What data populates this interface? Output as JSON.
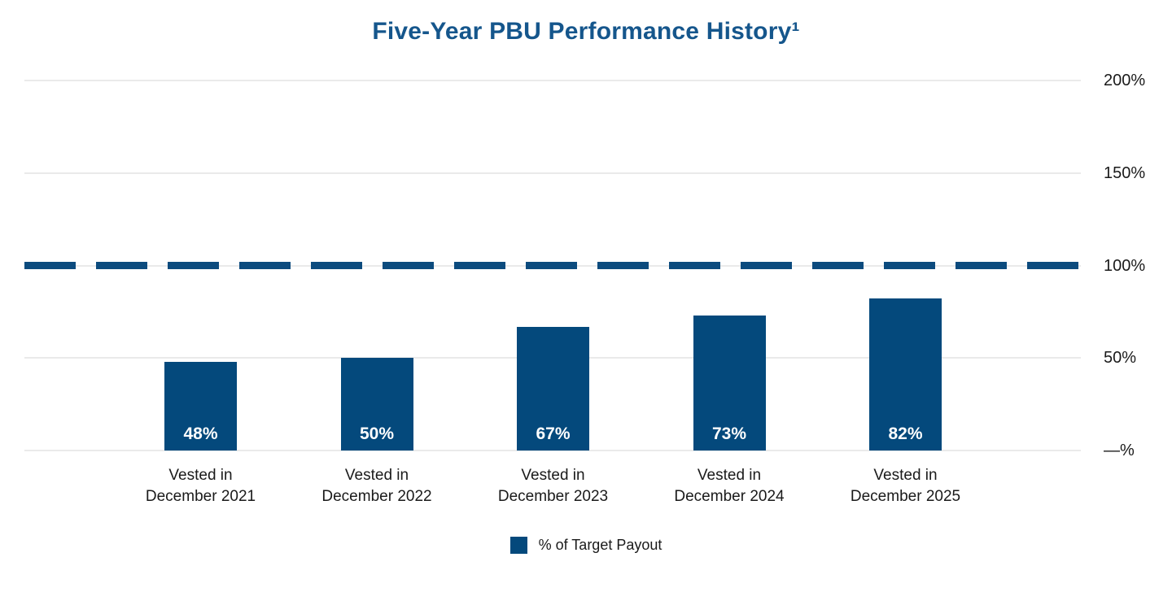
{
  "title": "Five-Year PBU Performance History¹",
  "colors": {
    "bar": "#04497C",
    "target_dash": "#0C4B7E",
    "title_text": "#15568C",
    "gridline": "#EAEAEA",
    "axis_text": "#1A1A1A",
    "bar_value_text": "#FFFFFF"
  },
  "chart_data": {
    "type": "bar",
    "title": "Five-Year PBU Performance History¹",
    "categories": [
      "Vested in\nDecember 2021",
      "Vested in\nDecember 2022",
      "Vested in\nDecember 2023",
      "Vested in\nDecember 2024",
      "Vested in\nDecember 2025"
    ],
    "values": [
      48,
      50,
      67,
      73,
      82
    ],
    "bar_labels": [
      "48%",
      "50%",
      "67%",
      "73%",
      "82%"
    ],
    "xlabel": "",
    "ylabel": "",
    "ylim": [
      0,
      200
    ],
    "y_ticks": [
      {
        "value": 200,
        "label": "200%"
      },
      {
        "value": 150,
        "label": "150%"
      },
      {
        "value": 100,
        "label": "100%"
      },
      {
        "value": 50,
        "label": "50%"
      },
      {
        "value": 0,
        "label": "—%"
      }
    ],
    "grid": true,
    "target_line": {
      "value": 100,
      "style": "dashed"
    },
    "legend_position": "bottom",
    "legend": [
      {
        "label": "% of Target Payout",
        "color": "#04497C"
      }
    ]
  }
}
